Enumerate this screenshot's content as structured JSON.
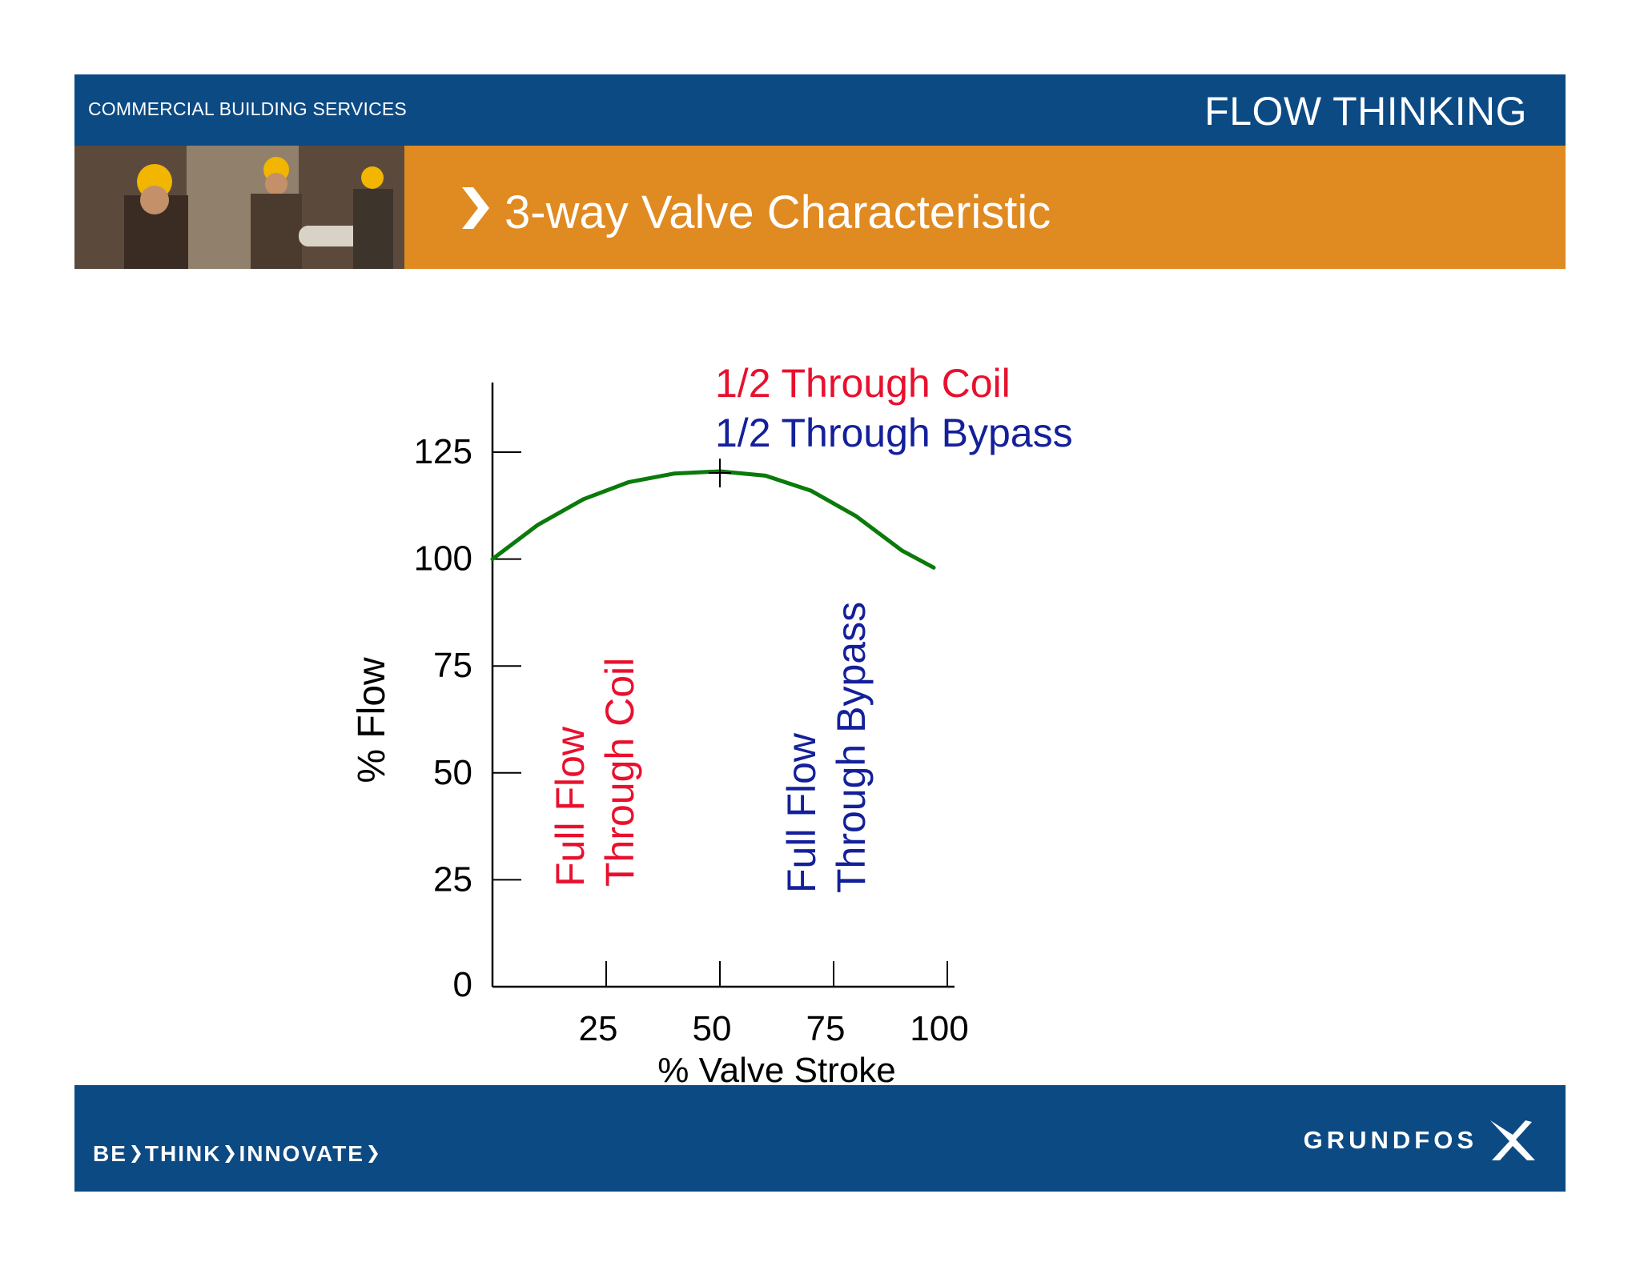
{
  "header": {
    "brand_sub": "COMMERCIAL BUILDING SERVICES",
    "brand_main": "FLOW THINKING",
    "slide_title": "3-way Valve Characteristic",
    "photo_desc_icon": "workers-photo"
  },
  "footer": {
    "tagline": [
      "BE",
      "THINK",
      "INNOVATE"
    ],
    "logo_text": "GRUNDFOS",
    "logo_icon": "grundfos-x-icon"
  },
  "colors": {
    "blue_bar": "#0c4a84",
    "orange_bar": "#e08a22",
    "curve": "#0a7a0a",
    "red_text": "#e8102e",
    "blue_text": "#14209a"
  },
  "chart_data": {
    "type": "line",
    "xlabel": "% Valve Stroke",
    "ylabel": "% Flow",
    "x_ticks": [
      25,
      50,
      75,
      100
    ],
    "y_ticks": [
      0,
      25,
      50,
      75,
      100,
      125
    ],
    "xlim": [
      0,
      100
    ],
    "ylim": [
      0,
      130
    ],
    "grid": false,
    "series": [
      {
        "x": [
          0,
          10,
          20,
          30,
          40,
          50,
          60,
          70,
          80,
          90,
          97
        ],
        "y": [
          100,
          108,
          114,
          118,
          120,
          120.5,
          119.5,
          116,
          110,
          102,
          98
        ]
      }
    ],
    "marker_point": {
      "x": 50,
      "y": 120.5
    },
    "annotations": [
      {
        "text": "1/2 Through Coil",
        "color": "#e8102e"
      },
      {
        "text": "1/2 Through Bypass",
        "color": "#14209a"
      },
      {
        "lines": [
          "Full Flow",
          "Through Coil"
        ],
        "color": "#e8102e"
      },
      {
        "lines": [
          "Full Flow",
          "Through Bypass"
        ],
        "color": "#14209a"
      }
    ]
  }
}
